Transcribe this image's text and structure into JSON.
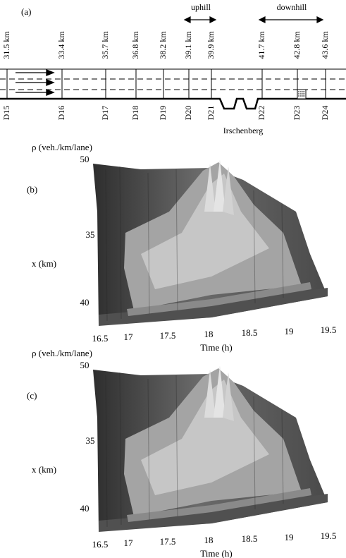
{
  "panel_a": {
    "label": "(a)",
    "uphill": "uphill",
    "downhill": "downhill",
    "location": "Irschenberg",
    "positions": [
      "31.5 km",
      "33.4 km",
      "35.7 km",
      "36.8 km",
      "38.2 km",
      "39.1 km",
      "39.9 km",
      "41.7 km",
      "42.8 km",
      "43.6 km"
    ],
    "detectors": [
      "D15",
      "D16",
      "D17",
      "D18",
      "D19",
      "D20",
      "D21",
      "D22",
      "D23",
      "D24"
    ]
  },
  "panels": [
    {
      "label": "(b)",
      "z_label": "ρ (veh./km/lane)",
      "x_label": "x (km)",
      "time_label": "Time (h)",
      "x_ticks": [
        "50",
        "35",
        "40"
      ],
      "time_ticks": [
        "16.5",
        "17",
        "17.5",
        "18",
        "18.5",
        "19",
        "19.5"
      ]
    },
    {
      "label": "(c)",
      "z_label": "ρ (veh./km/lane)",
      "x_label": "x (km)",
      "time_label": "Time (h)",
      "x_ticks": [
        "50",
        "35",
        "40"
      ],
      "time_ticks": [
        "16.5",
        "17",
        "17.5",
        "18",
        "18.5",
        "19",
        "19.5"
      ]
    }
  ]
}
